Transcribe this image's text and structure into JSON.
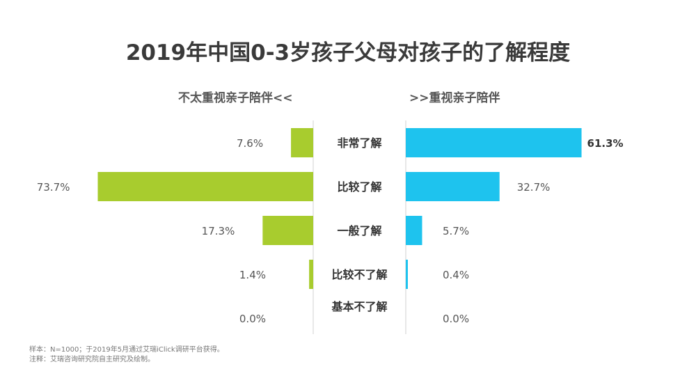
{
  "chart_data": {
    "type": "bar",
    "title": "2019年中国0-3岁孩子父母对孩子的了解程度",
    "left_header": "不太重视亲子陪伴<<",
    "right_header": ">>重视亲子陪伴",
    "categories": [
      "非常了解",
      "比较了解",
      "一般了解",
      "比较不了解",
      "基本不了解"
    ],
    "series": [
      {
        "name": "不太重视亲子陪伴",
        "values": [
          7.6,
          73.7,
          17.3,
          1.4,
          0.0
        ],
        "labels": [
          "7.6%",
          "73.7%",
          "17.3%",
          "1.4%",
          "0.0%"
        ],
        "color": "#a8cc2e"
      },
      {
        "name": "重视亲子陪伴",
        "values": [
          61.3,
          32.7,
          5.7,
          0.4,
          0.0
        ],
        "labels": [
          "61.3%",
          "32.7%",
          "5.7%",
          "0.4%",
          "0.0%"
        ],
        "color": "#1ec3ee"
      }
    ],
    "xlim": [
      0,
      80
    ]
  },
  "footnotes": {
    "sample": "样本：N=1000；于2019年5月通过艾瑞iClick调研平台获得。",
    "note": "注释：艾瑞咨询研究院自主研究及绘制。"
  }
}
